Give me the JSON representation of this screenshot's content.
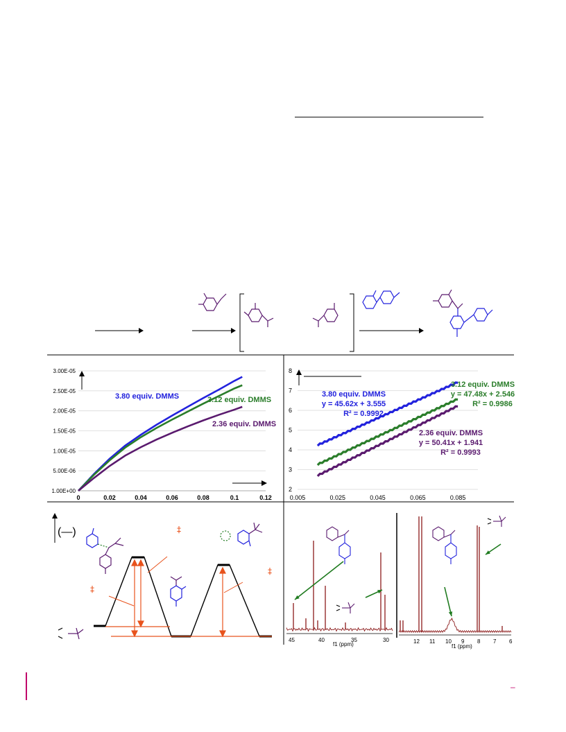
{
  "colors": {
    "blue": "#2222dd",
    "green": "#2a7d2a",
    "purple": "#5a1a6e",
    "orange": "#e8531d",
    "dark_green": "#1e7a1e",
    "nmr": "#8b1a1a",
    "accent_left_bar": "#c0006a"
  },
  "icons": [
    "molecule-structure",
    "arrow-right",
    "bracket",
    "double-dagger"
  ],
  "footer": {
    "right_mark": "–"
  },
  "chart_data": [
    {
      "type": "line",
      "title": "",
      "xlabel": "",
      "ylabel": "",
      "xlim": [
        0,
        0.12
      ],
      "ylim": [
        0,
        3e-05
      ],
      "x_ticks": [
        "0",
        "0.02",
        "0.04",
        "0.06",
        "0.08",
        "0.1",
        "0.12"
      ],
      "y_ticks": [
        "1.00E+00",
        "5.00E-06",
        "1.00E-05",
        "1.50E-05",
        "2.00E-05",
        "2.50E-05",
        "3.00E-05"
      ],
      "grid": true,
      "series": [
        {
          "name": "3.80 equiv. DMMS",
          "color": "#2222dd",
          "x": [
            0.0,
            0.01,
            0.02,
            0.03,
            0.04,
            0.05,
            0.06,
            0.07,
            0.08,
            0.09,
            0.1,
            0.105
          ],
          "y": [
            0.0,
            4.2e-06,
            8e-06,
            1.13e-05,
            1.4e-05,
            1.65e-05,
            1.88e-05,
            2.1e-05,
            2.32e-05,
            2.53e-05,
            2.75e-05,
            2.85e-05
          ]
        },
        {
          "name": "3.12 equiv. DMMS",
          "color": "#2a7d2a",
          "x": [
            0.0,
            0.01,
            0.02,
            0.03,
            0.04,
            0.05,
            0.06,
            0.07,
            0.08,
            0.09,
            0.1,
            0.105
          ],
          "y": [
            0.0,
            4e-06,
            7.6e-06,
            1.08e-05,
            1.34e-05,
            1.57e-05,
            1.78e-05,
            1.98e-05,
            2.18e-05,
            2.37e-05,
            2.56e-05,
            2.64e-05
          ]
        },
        {
          "name": "2.36 equiv. DMMS",
          "color": "#5a1a6e",
          "x": [
            0.0,
            0.01,
            0.02,
            0.03,
            0.04,
            0.05,
            0.06,
            0.07,
            0.08,
            0.09,
            0.1,
            0.105
          ],
          "y": [
            0.0,
            3.2e-06,
            6.2e-06,
            8.8e-06,
            1.09e-05,
            1.28e-05,
            1.45e-05,
            1.61e-05,
            1.76e-05,
            1.9e-05,
            2.03e-05,
            2.1e-05
          ]
        }
      ],
      "labels": [
        "3.80 equiv. DMMS",
        "3.12 equiv. DMMS",
        "2.36 equiv. DMMS"
      ]
    },
    {
      "type": "line",
      "title": "",
      "xlabel": "",
      "ylabel": "",
      "xlim": [
        0.005,
        0.095
      ],
      "ylim": [
        2,
        8
      ],
      "x_ticks": [
        "0.005",
        "0.025",
        "0.045",
        "0.065",
        "0.085"
      ],
      "y_ticks": [
        "2",
        "3",
        "4",
        "5",
        "6",
        "7",
        "8"
      ],
      "grid": true,
      "series": [
        {
          "name": "3.80 equiv. DMMS",
          "color": "#2222dd",
          "x": [
            0.015,
            0.085
          ],
          "y": [
            4.24,
            7.43
          ],
          "equation": "y = 45.62x + 3.555",
          "r2": "R² = 0.9992"
        },
        {
          "name": "3.12 equiv. DMMS",
          "color": "#2a7d2a",
          "x": [
            0.015,
            0.085
          ],
          "y": [
            3.26,
            6.58
          ],
          "equation": "y = 47.48x + 2.546",
          "r2": "R² = 0.9986"
        },
        {
          "name": "2.36 equiv. DMMS",
          "color": "#5a1a6e",
          "x": [
            0.015,
            0.085
          ],
          "y": [
            2.7,
            6.23
          ],
          "equation": "y = 50.41x + 1.941",
          "r2": "R² = 0.9993"
        }
      ]
    },
    {
      "type": "line",
      "title": "",
      "xlabel": "f1 (ppm)",
      "x_ticks": [
        "45",
        "40",
        "35",
        "30"
      ],
      "xlim": [
        45,
        29
      ]
    },
    {
      "type": "line",
      "title": "",
      "xlabel": "f1 (ppm)",
      "x_ticks": [
        "12",
        "11",
        "10",
        "9",
        "8",
        "7",
        "6"
      ],
      "xlim": [
        12.5,
        5.5
      ]
    }
  ],
  "energy_diagram": {
    "dagger": "‡",
    "paren_label": "(—)"
  }
}
